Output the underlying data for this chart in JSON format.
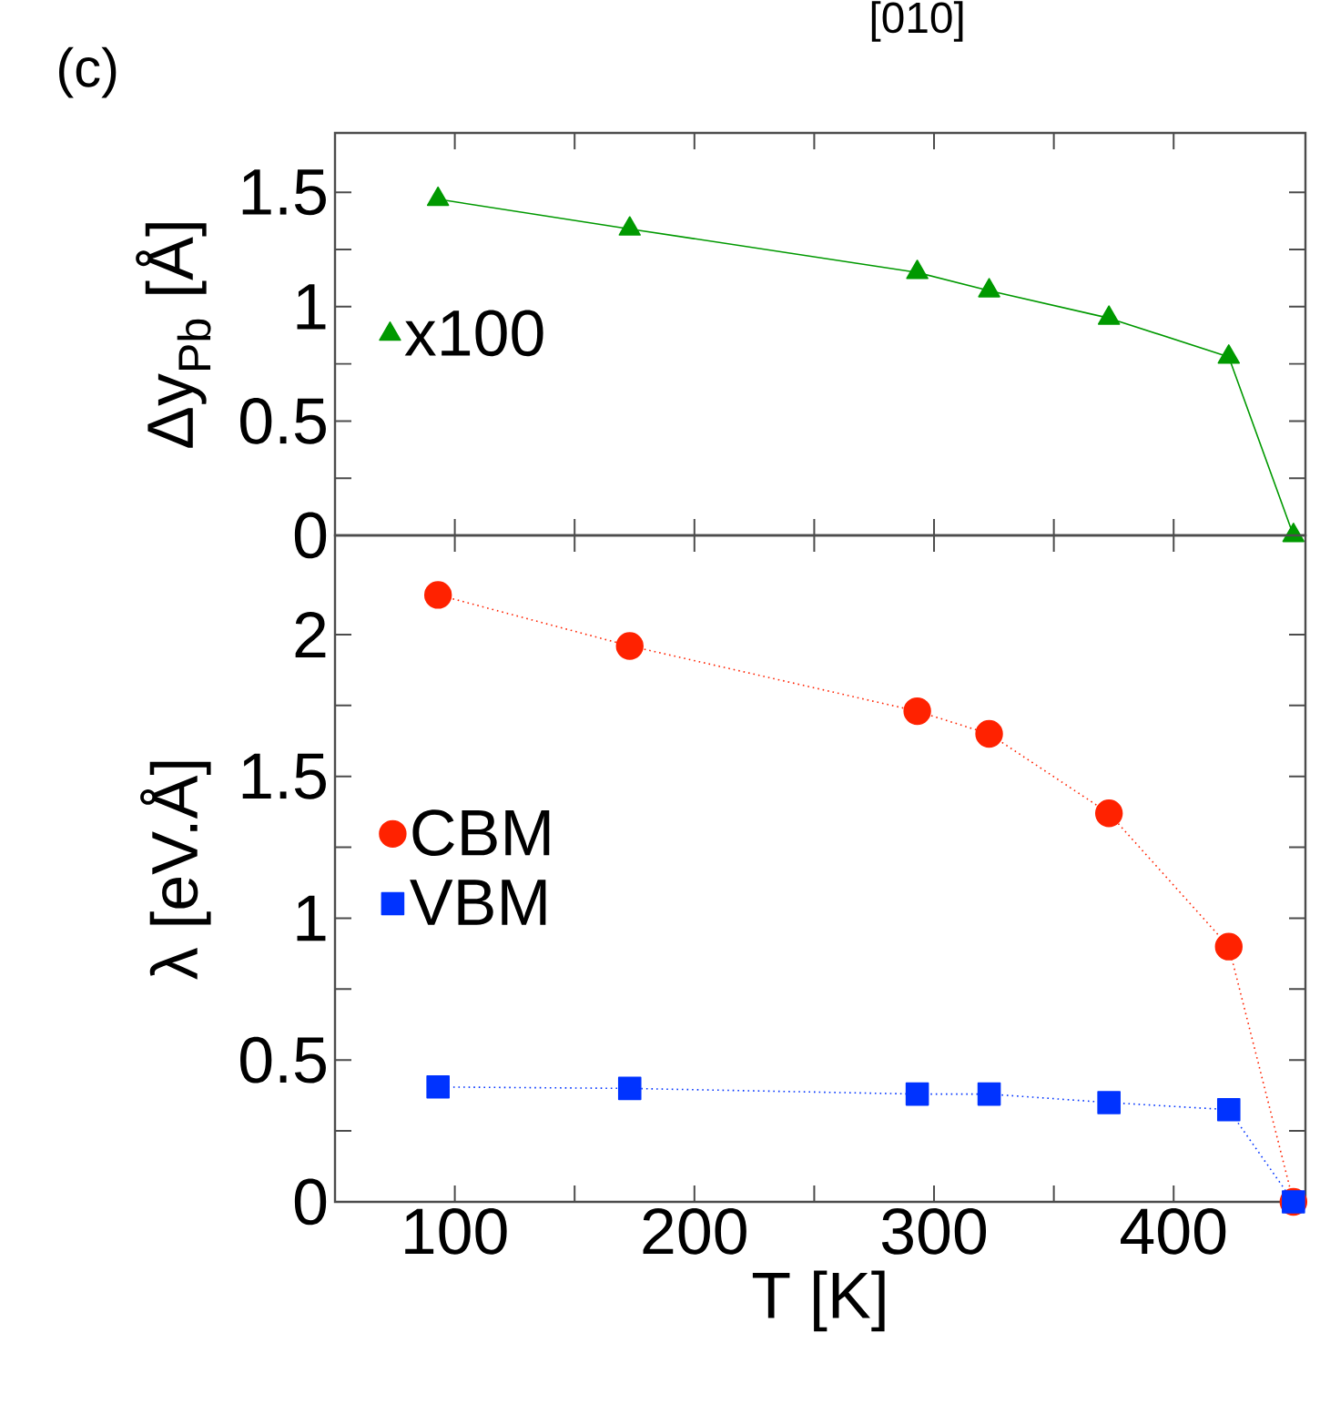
{
  "chart_data": [
    {
      "type": "line",
      "title": "[010]",
      "annotations": [
        "(c)"
      ],
      "ylabel": "Δy$_{Pb}$ [Å]",
      "x": [
        93,
        173,
        293,
        323,
        373,
        423,
        450
      ],
      "series": [
        {
          "name": "x100",
          "color": "#009900",
          "values": [
            1.47,
            1.34,
            1.15,
            1.07,
            0.95,
            0.78,
            0
          ],
          "marker": "triangle",
          "line_style": "solid"
        }
      ],
      "xlim": [
        50,
        455
      ],
      "xticks": [
        100,
        {
          "value": 150,
          "label": null
        },
        200,
        {
          "value": 250,
          "label": null
        },
        300,
        {
          "value": 350,
          "label": null
        },
        400
      ],
      "ylim": [
        0,
        1.76
      ],
      "yticks": [
        0,
        {
          "value": 0.25,
          "label": null
        },
        0.5,
        {
          "value": 0.75,
          "label": null
        },
        1,
        {
          "value": 1.25,
          "label": null
        },
        1.5
      ],
      "tick_labels": "y",
      "legend": "left",
      "grid": false
    },
    {
      "type": "line",
      "xlabel": "T [K]",
      "ylabel": "λ [eV.Å]",
      "x": [
        93,
        173,
        293,
        323,
        373,
        423,
        450
      ],
      "series": [
        {
          "name": "CBM",
          "color": "#ff2200",
          "values": [
            2.14,
            1.96,
            1.73,
            1.65,
            1.37,
            0.9,
            0
          ],
          "marker": "circle",
          "line_style": "dotted"
        },
        {
          "name": "VBM",
          "color": "#0033ff",
          "values": [
            0.405,
            0.4,
            0.38,
            0.38,
            0.35,
            0.325,
            0
          ],
          "marker": "square",
          "line_style": "dotted"
        }
      ],
      "xlim": [
        50,
        455
      ],
      "xticks": [
        100,
        {
          "value": 150,
          "label": null
        },
        200,
        {
          "value": 250,
          "label": null
        },
        300,
        {
          "value": 350,
          "label": null
        },
        400
      ],
      "ylim": [
        0,
        2.35
      ],
      "yticks": [
        0,
        {
          "value": 0.25,
          "label": null
        },
        0.5,
        {
          "value": 0.75,
          "label": null
        },
        1,
        {
          "value": 1.25,
          "label": null
        },
        1.5,
        {
          "value": 1.75,
          "label": null
        },
        2
      ],
      "legend": "left",
      "grid": false
    }
  ]
}
